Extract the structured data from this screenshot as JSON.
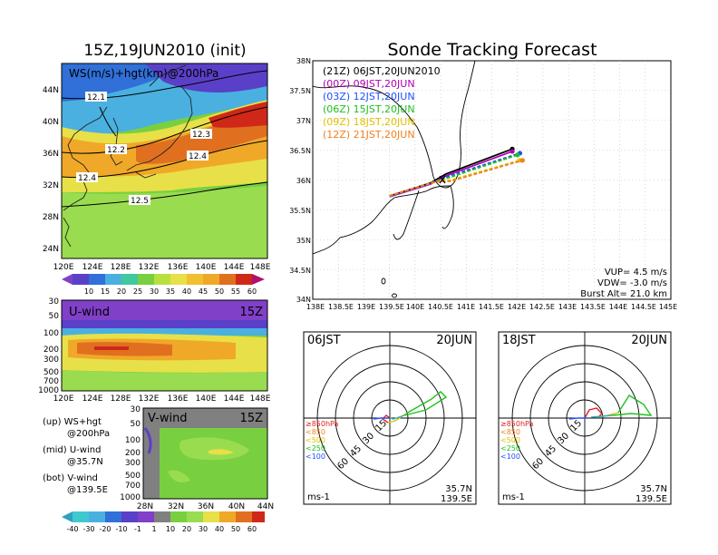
{
  "titles": {
    "left": "15Z,19JUN2010 (init)",
    "right": "Sonde Tracking Forecast"
  },
  "map_panel": {
    "label": "WS(m/s)+hgt(km)@200hPa",
    "contour_labels": [
      "12.1",
      "12.2",
      "12.3",
      "12.4",
      "12.4",
      "12.5"
    ],
    "lat_ticks": [
      "44N",
      "40N",
      "36N",
      "32N",
      "28N",
      "24N"
    ],
    "lon_ticks": [
      "120E",
      "124E",
      "128E",
      "132E",
      "136E",
      "140E",
      "144E",
      "148E"
    ],
    "colorbar": [
      "10",
      "15",
      "20",
      "25",
      "30",
      "35",
      "40",
      "45",
      "50",
      "55",
      "60"
    ]
  },
  "u_panel": {
    "label": "U-wind",
    "time": "15Z",
    "p_ticks": [
      "30",
      "50",
      "100",
      "200",
      "300",
      "500",
      "700",
      "1000"
    ],
    "lon_ticks": [
      "120E",
      "124E",
      "128E",
      "132E",
      "136E",
      "140E",
      "144E",
      "148E"
    ]
  },
  "v_panel": {
    "label": "V-wind",
    "time": "15Z",
    "p_ticks": [
      "30",
      "50",
      "100",
      "200",
      "300",
      "500",
      "700",
      "1000"
    ],
    "lat_ticks": [
      "28N",
      "32N",
      "36N",
      "40N",
      "44N"
    ]
  },
  "legend_notes": [
    [
      "(up) WS+hgt",
      "@200hPa"
    ],
    [
      "(mid) U-wind",
      "@35.7N"
    ],
    [
      "(bot) V-wind",
      "@139.5E"
    ]
  ],
  "bottom_colorbar": [
    "-40",
    "-30",
    "-20",
    "-10",
    "-1",
    "1",
    "10",
    "20",
    "30",
    "40",
    "50",
    "60"
  ],
  "tracking": {
    "lat_ticks": [
      "38N",
      "37.5N",
      "37N",
      "36.5N",
      "36N",
      "35.5N",
      "35N",
      "34.5N",
      "34N"
    ],
    "lon_ticks": [
      "138E",
      "138.5E",
      "139E",
      "139.5E",
      "140E",
      "140.5E",
      "141E",
      "141.5E",
      "142E",
      "142.5E",
      "143E",
      "143.5E",
      "144E",
      "144.5E",
      "145E"
    ],
    "legend": [
      {
        "label": "(21Z)  06JST,20JUN2010",
        "color": "#000000"
      },
      {
        "label": "(00Z)  09JST,20JUN",
        "color": "#b000b0"
      },
      {
        "label": "(03Z)  12JST,20JUN",
        "color": "#2050ff"
      },
      {
        "label": "(06Z)  15JST,20JUN",
        "color": "#20c020"
      },
      {
        "label": "(09Z)  18JST,20JUN",
        "color": "#e0c000"
      },
      {
        "label": "(12Z)  21JST,20JUN",
        "color": "#f08020"
      }
    ],
    "info": [
      "VUP= 4.5 m/s",
      "VDW= -3.0 m/s",
      "Burst Alt= 21.0 km"
    ]
  },
  "chart_data": [
    {
      "type": "line",
      "title": "Sonde Tracking Forecast",
      "xlabel": "",
      "ylabel": "",
      "xlim": [
        138,
        145
      ],
      "ylim": [
        34,
        38
      ],
      "series": [
        {
          "name": "(21Z)  06JST,20JUN2010",
          "x": [
            139.5,
            140.3,
            140.6,
            141.9
          ],
          "y": [
            35.73,
            35.95,
            36.1,
            36.52
          ],
          "style": "solid"
        },
        {
          "name": "(00Z)  09JST,20JUN",
          "x": [
            139.5,
            140.3,
            140.6,
            141.9
          ],
          "y": [
            35.72,
            35.93,
            36.07,
            36.48
          ],
          "style": "solid"
        },
        {
          "name": "(03Z)  12JST,20JUN",
          "x": [
            139.5,
            140.4,
            140.6,
            142.05
          ],
          "y": [
            35.73,
            35.97,
            36.05,
            36.45
          ],
          "style": "dashed"
        },
        {
          "name": "(06Z)  15JST,20JUN",
          "x": [
            139.5,
            140.4,
            140.7,
            142.0
          ],
          "y": [
            35.73,
            35.98,
            36.05,
            36.42
          ],
          "style": "dashed"
        },
        {
          "name": "(09Z)  18JST,20JUN",
          "x": [
            139.5,
            140.4,
            140.7,
            142.05
          ],
          "y": [
            35.74,
            35.97,
            36.0,
            36.33
          ],
          "style": "dashed"
        },
        {
          "name": "(12Z)  21JST,20JUN",
          "x": [
            139.5,
            140.4,
            140.7,
            142.1
          ],
          "y": [
            35.74,
            35.97,
            35.98,
            36.33
          ],
          "style": "dashed"
        }
      ]
    },
    {
      "type": "line",
      "title": "06JST 20JUN",
      "subtitle_left": "06JST",
      "subtitle_right": "20JUN",
      "rings": [
        "15",
        "30",
        "45",
        "60"
      ],
      "pressure_legend": [
        "≥850hPa",
        "<850",
        "<500",
        "<250",
        "<100"
      ],
      "location": [
        "35.7N",
        "139.5E"
      ],
      "unit": "ms-1"
    },
    {
      "type": "line",
      "title": "18JST 20JUN",
      "subtitle_left": "18JST",
      "subtitle_right": "20JUN",
      "rings": [
        "15",
        "30",
        "45",
        "60"
      ],
      "pressure_legend": [
        "≥850hPa",
        "<850",
        "<500",
        "<250",
        "<100"
      ],
      "location": [
        "35.7N",
        "139.5E"
      ],
      "unit": "ms-1"
    }
  ]
}
